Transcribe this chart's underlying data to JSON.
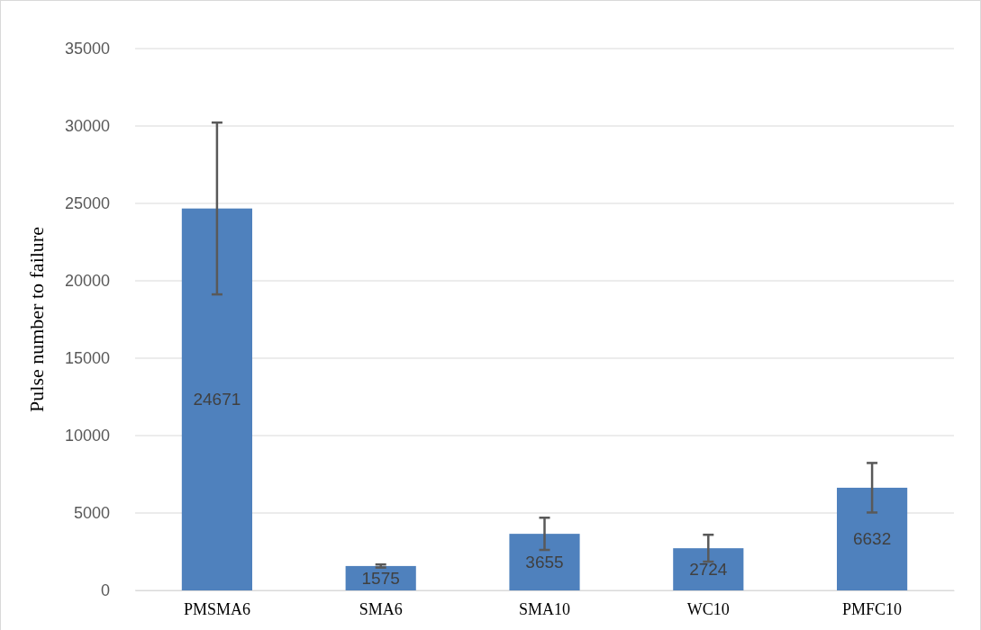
{
  "chart_data": {
    "type": "bar",
    "ylabel": "Pulse number to failure",
    "categories": [
      "PMSMA6",
      "SMA6",
      "SMA10",
      "WC10",
      "PMFC10"
    ],
    "values": [
      24671,
      1575,
      3655,
      2724,
      6632
    ],
    "errors": [
      5550,
      100,
      1040,
      870,
      1600
    ],
    "color": "#4f81bd",
    "ylim": [
      0,
      35000
    ],
    "yticks": [
      0,
      5000,
      10000,
      15000,
      20000,
      25000,
      30000,
      35000
    ],
    "grid": "y",
    "data_labels": true
  }
}
